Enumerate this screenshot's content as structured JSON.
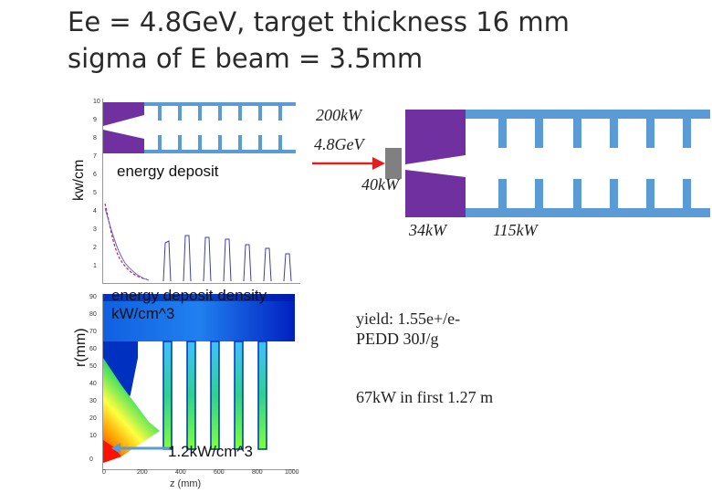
{
  "slide": {
    "title_line1": "Ee = 4.8GeV, target thickness 16 mm",
    "title_line2": "sigma of E beam = 3.5mm"
  },
  "plot_top": {
    "ylabel": "kw/cm",
    "annotation": "energy deposit",
    "yticks": [
      "10",
      "9",
      "8",
      "7",
      "6",
      "5",
      "4",
      "3",
      "2",
      "1"
    ]
  },
  "plot_bottom": {
    "ylabel": "r(mm)",
    "annotation_line1": "energy deposit density",
    "annotation_line2": "kW/cm^3",
    "peak_label": "1.2kW/cm^3",
    "xlabel": "z (mm)",
    "xticks": [
      "0",
      "200",
      "400",
      "600",
      "800",
      "1000"
    ],
    "yticks": [
      "90",
      "80",
      "70",
      "60",
      "50",
      "40",
      "30",
      "20",
      "10",
      "0"
    ]
  },
  "diagram": {
    "power_in": "200kW",
    "energy": "4.8GeV",
    "target_power": "40kW",
    "slit_power": "34kW",
    "structure_power": "115kW",
    "colors": {
      "absorber": "#7030a0",
      "structure": "#5b9bd5",
      "beam": "#e02020",
      "target": "#808080"
    }
  },
  "results": {
    "yield": "yield:  1.55e+/e-",
    "pedd": "PEDD 30J/g",
    "first_section": "67kW in first 1.27 m"
  }
}
